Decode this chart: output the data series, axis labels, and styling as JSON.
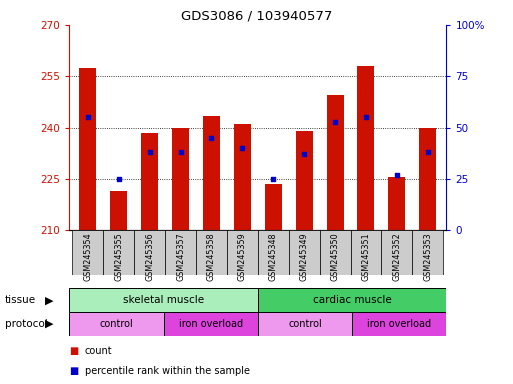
{
  "title": "GDS3086 / 103940577",
  "samples": [
    "GSM245354",
    "GSM245355",
    "GSM245356",
    "GSM245357",
    "GSM245358",
    "GSM245359",
    "GSM245348",
    "GSM245349",
    "GSM245350",
    "GSM245351",
    "GSM245352",
    "GSM245353"
  ],
  "bar_tops": [
    257.5,
    221.5,
    238.5,
    240.0,
    243.5,
    241.0,
    223.5,
    239.0,
    249.5,
    258.0,
    225.5,
    240.0
  ],
  "bar_base": 210,
  "percentile_ranks": [
    55,
    25,
    38,
    38,
    45,
    40,
    25,
    37,
    53,
    55,
    27,
    38
  ],
  "left_ylim": [
    210,
    270
  ],
  "right_ylim": [
    0,
    100
  ],
  "left_yticks": [
    210,
    225,
    240,
    255,
    270
  ],
  "right_yticks": [
    0,
    25,
    50,
    75,
    100
  ],
  "right_yticklabels": [
    "0",
    "25",
    "50",
    "75",
    "100%"
  ],
  "bar_color": "#cc1100",
  "dot_color": "#0000cc",
  "protocol_color_light": "#ee99ee",
  "protocol_color_dark": "#dd44dd",
  "tissue_color_skeletal": "#aaeebb",
  "tissue_color_cardiac": "#44cc66",
  "axis_label_color_left": "#cc1100",
  "axis_label_color_right": "#0000cc",
  "bg_color": "#ffffff",
  "sample_bg_color": "#cccccc"
}
